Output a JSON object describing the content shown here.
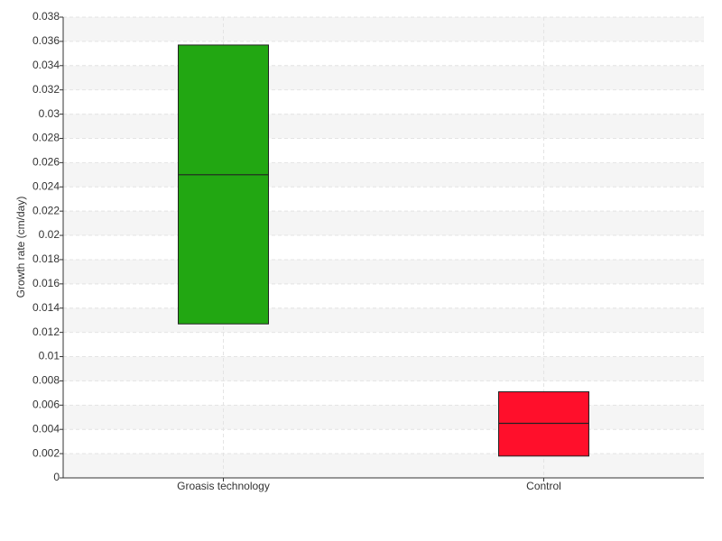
{
  "chart_data": {
    "type": "box",
    "y_label": "Growth rate (cm/day)",
    "categories": [
      "Groasis technology",
      "Control"
    ],
    "low": [
      0.0127,
      0.0018
    ],
    "median": [
      0.025,
      0.0045
    ],
    "high": [
      0.0357,
      0.0071
    ],
    "colors": [
      "#22a712",
      "#ff0f2b"
    ],
    "ylim": [
      0,
      0.038
    ],
    "yticks": [
      0,
      0.002,
      0.004,
      0.006,
      0.008,
      0.01,
      0.012,
      0.014,
      0.016,
      0.018,
      0.02,
      0.022,
      0.024,
      0.026,
      0.028,
      0.03,
      0.032,
      0.034,
      0.036,
      0.038
    ],
    "grid": true
  }
}
